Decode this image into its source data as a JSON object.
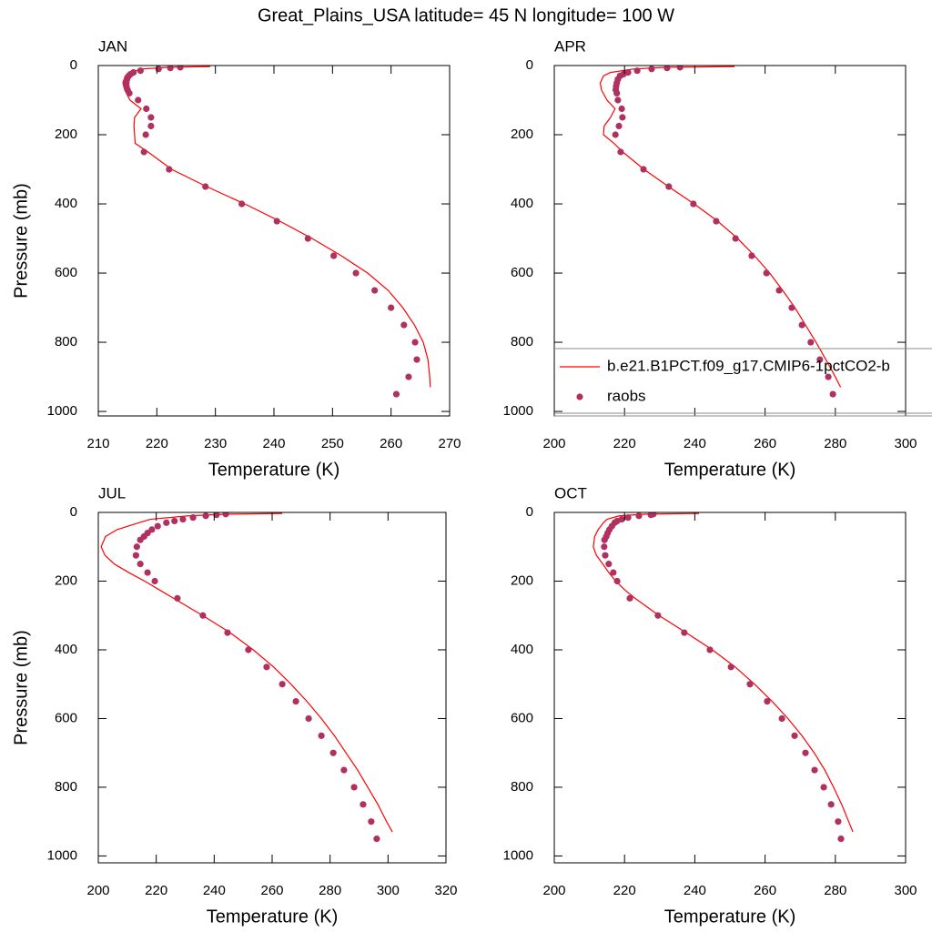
{
  "title": "Great_Plains_USA  latitude= 45 N longitude= 100 W",
  "chart_data": [
    {
      "type": "line",
      "title": "JAN",
      "xlabel": "Temperature (K)",
      "ylabel": "Pressure (mb)",
      "xlim": [
        210,
        270
      ],
      "xticks": [
        210,
        220,
        230,
        240,
        250,
        260,
        270
      ],
      "ylim": [
        1013,
        0
      ],
      "yticks": [
        0,
        200,
        400,
        600,
        800,
        1000
      ],
      "series": [
        {
          "name": "b.e21.B1PCT.f09_g17.CMIP6-1pctCO2-b",
          "color": "#ff0000",
          "kind": "line",
          "x": [
            229.1,
            222,
            217.5,
            215.5,
            214.6,
            214.2,
            214.5,
            215.4,
            217.3,
            216.2,
            216.1,
            216.2,
            216.3,
            218.5,
            222.5,
            228.5,
            235.0,
            241.0,
            246.5,
            251.5,
            256.0,
            259.5,
            262.0,
            264.0,
            265.5,
            266.3,
            266.6,
            266.7
          ],
          "values": [
            3,
            5,
            10,
            20,
            30,
            50,
            70,
            100,
            125,
            150,
            175,
            200,
            225,
            250,
            300,
            350,
            400,
            450,
            500,
            550,
            600,
            650,
            700,
            750,
            800,
            850,
            900,
            930
          ]
        },
        {
          "name": "raobs",
          "color": "#b03060",
          "kind": "scatter",
          "x": [
            224.0,
            222.3,
            220.3,
            217.2,
            216.0,
            215.5,
            215.2,
            214.9,
            214.8,
            214.8,
            215.0,
            215.3,
            216.8,
            218.2,
            219.0,
            219.0,
            218.1,
            217.8,
            222.1,
            228.3,
            234.5,
            240.5,
            245.8,
            250.2,
            254.0,
            257.2,
            260.0,
            262.2,
            264.1,
            264.4,
            263.0,
            260.9
          ],
          "values": [
            5,
            7,
            10,
            15,
            20,
            25,
            30,
            40,
            50,
            60,
            70,
            80,
            100,
            125,
            150,
            175,
            200,
            250,
            300,
            350,
            400,
            450,
            500,
            550,
            600,
            650,
            700,
            750,
            800,
            850,
            900,
            950
          ]
        }
      ]
    },
    {
      "type": "line",
      "title": "APR",
      "xlabel": "Temperature (K)",
      "legend": "lower right",
      "xlim": [
        200,
        300
      ],
      "xticks": [
        200,
        220,
        240,
        260,
        280,
        300
      ],
      "ylim": [
        1013,
        0
      ],
      "yticks": [
        0,
        200,
        400,
        600,
        800,
        1000
      ],
      "series": [
        {
          "name": "b.e21.B1PCT.f09_g17.CMIP6-1pctCO2-b",
          "color": "#ff0000",
          "kind": "line",
          "x": [
            251.3,
            232,
            222.5,
            216.0,
            214.0,
            213.1,
            213.4,
            215.0,
            217.3,
            216.0,
            214.2,
            214.0,
            217.0,
            219.5,
            225.5,
            232.5,
            239.8,
            246.5,
            252.2,
            257.0,
            261.3,
            265.0,
            268.5,
            271.5,
            274.5,
            277.3,
            280.0,
            281.5
          ],
          "values": [
            3,
            5,
            10,
            20,
            30,
            50,
            70,
            100,
            125,
            150,
            175,
            200,
            225,
            250,
            300,
            350,
            400,
            450,
            500,
            550,
            600,
            650,
            700,
            750,
            800,
            850,
            900,
            930
          ]
        },
        {
          "name": "raobs",
          "color": "#b03060",
          "kind": "scatter",
          "x": [
            235.8,
            232.1,
            227.7,
            223.6,
            221.0,
            219.7,
            218.7,
            218.1,
            217.8,
            217.6,
            217.5,
            217.8,
            218.1,
            219.2,
            219.4,
            218.4,
            217.4,
            218.9,
            225.4,
            232.6,
            239.6,
            246.1,
            251.6,
            256.2,
            260.4,
            264.0,
            267.6,
            270.5,
            273.0,
            275.6,
            278.0,
            279.3
          ],
          "values": [
            5,
            7,
            10,
            15,
            20,
            25,
            30,
            40,
            50,
            60,
            70,
            80,
            100,
            125,
            150,
            175,
            200,
            250,
            300,
            350,
            400,
            450,
            500,
            550,
            600,
            650,
            700,
            750,
            800,
            850,
            900,
            950
          ]
        }
      ]
    },
    {
      "type": "line",
      "title": "JUL",
      "xlabel": "Temperature (K)",
      "ylabel": "Pressure (mb)",
      "xlim": [
        200,
        320
      ],
      "xticks": [
        200,
        220,
        240,
        260,
        280,
        300,
        320
      ],
      "ylim": [
        1020,
        0
      ],
      "yticks": [
        0,
        200,
        400,
        600,
        800,
        1000
      ],
      "series": [
        {
          "name": "b.e21.B1PCT.f09_g17.CMIP6-1pctCO2-b",
          "color": "#ff0000",
          "kind": "line",
          "x": [
            263.5,
            245,
            231,
            218,
            214,
            206.5,
            202.5,
            201.0,
            202.3,
            205.5,
            210.5,
            216,
            221,
            226,
            236,
            245.5,
            253.5,
            260.5,
            266.5,
            272,
            277,
            281.5,
            285.5,
            289.5,
            293,
            296.5,
            299.5,
            301.5
          ],
          "values": [
            3,
            5,
            10,
            20,
            30,
            50,
            70,
            100,
            125,
            150,
            175,
            200,
            225,
            250,
            300,
            350,
            400,
            450,
            500,
            550,
            600,
            650,
            700,
            750,
            800,
            850,
            900,
            930
          ]
        },
        {
          "name": "raobs",
          "color": "#b03060",
          "kind": "scatter",
          "x": [
            244.0,
            240.8,
            237.1,
            232.7,
            229.2,
            226.3,
            223.5,
            220.5,
            218.5,
            217.0,
            215.8,
            214.5,
            213.3,
            213.0,
            214.5,
            217.0,
            219.5,
            227.3,
            236.1,
            244.6,
            251.8,
            258.1,
            263.5,
            268.2,
            272.6,
            277.0,
            281.1,
            284.8,
            288.3,
            291.4,
            294.2,
            296.1
          ],
          "values": [
            5,
            7,
            10,
            15,
            20,
            25,
            30,
            40,
            50,
            60,
            70,
            80,
            100,
            125,
            150,
            175,
            200,
            250,
            300,
            350,
            400,
            450,
            500,
            550,
            600,
            650,
            700,
            750,
            800,
            850,
            900,
            950
          ]
        }
      ]
    },
    {
      "type": "line",
      "title": "OCT",
      "xlabel": "Temperature (K)",
      "xlim": [
        200,
        300
      ],
      "xticks": [
        200,
        220,
        240,
        260,
        280,
        300
      ],
      "ylim": [
        1020,
        0
      ],
      "yticks": [
        0,
        200,
        400,
        600,
        800,
        1000
      ],
      "series": [
        {
          "name": "b.e21.B1PCT.f09_g17.CMIP6-1pctCO2-b",
          "color": "#ff0000",
          "kind": "line",
          "x": [
            241.2,
            226,
            218.5,
            215,
            214,
            212.5,
            211.5,
            211.1,
            212.0,
            213.8,
            215.5,
            217.5,
            220,
            223,
            229.8,
            237.5,
            245,
            251.5,
            257,
            262,
            266.5,
            270.5,
            274,
            277,
            279.5,
            281.8,
            283.8,
            285.0
          ],
          "values": [
            3,
            5,
            10,
            20,
            30,
            50,
            70,
            100,
            125,
            150,
            175,
            200,
            225,
            250,
            300,
            350,
            400,
            450,
            500,
            550,
            600,
            650,
            700,
            750,
            800,
            850,
            900,
            930
          ]
        },
        {
          "name": "raobs",
          "color": "#b03060",
          "kind": "scatter",
          "x": [
            228.2,
            227.5,
            224.1,
            221.0,
            219.2,
            217.9,
            217.2,
            216.4,
            215.7,
            215.2,
            214.8,
            214.3,
            214.2,
            214.5,
            215.5,
            216.8,
            217.9,
            221.5,
            229.5,
            237.0,
            244.3,
            250.3,
            255.7,
            260.6,
            264.8,
            268.4,
            271.5,
            274.1,
            276.7,
            278.8,
            280.8,
            281.6
          ],
          "values": [
            5,
            7,
            10,
            15,
            20,
            25,
            30,
            40,
            50,
            60,
            70,
            80,
            100,
            125,
            150,
            175,
            200,
            250,
            300,
            350,
            400,
            450,
            500,
            550,
            600,
            650,
            700,
            750,
            800,
            850,
            900,
            950
          ]
        }
      ]
    }
  ]
}
